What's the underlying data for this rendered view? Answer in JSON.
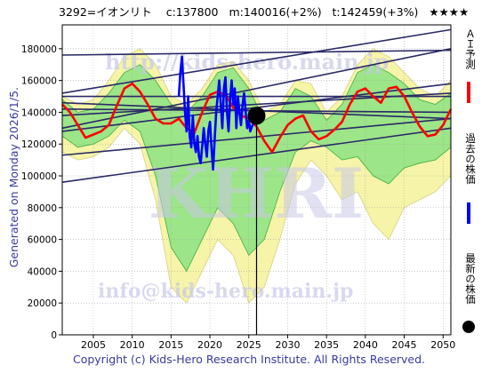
{
  "header": {
    "code_name": "3292=イオンリト",
    "current": "c:137800",
    "mid": "m:140016(+2%)",
    "target": "t:142459(+3%)",
    "stars": "★★★★"
  },
  "side_text": "Generated on Monday 2026/1/5.",
  "copyright": "Copyright (c) Kids-Hero Research Institute. All Rights Reserved.",
  "watermarks": {
    "top": "http://kids-hero.main.jp",
    "middle": "KHRI",
    "bottom": "info@kids-hero.main.jp"
  },
  "legend": {
    "ai_forecast": "ＡＩ予測",
    "past_price": "過去の株価",
    "latest_price": "最新の株価"
  },
  "colors": {
    "ai_forecast": "#ff0000",
    "past_price": "#0000ff",
    "latest_price": "#000000",
    "band_green": "#7ee07e",
    "band_yellow": "#f5f3a3",
    "trend_lines": "#2a2a66",
    "side_text": "#3a3aa0"
  },
  "chart_data": {
    "type": "line",
    "xlim": [
      2001,
      2051
    ],
    "ylim": [
      0,
      195000
    ],
    "x_ticks": [
      2005,
      2010,
      2015,
      2020,
      2025,
      2030,
      2035,
      2040,
      2045,
      2050
    ],
    "y_ticks": [
      0,
      20000,
      40000,
      60000,
      80000,
      100000,
      120000,
      140000,
      160000,
      180000
    ],
    "grid": true,
    "current_marker": {
      "x": 2026.0,
      "y": 137800
    },
    "vertical_line_x": 2026.0,
    "series": [
      {
        "name": "ＡＩ予測",
        "x": [
          2001,
          2002,
          2003,
          2004,
          2005,
          2006,
          2007,
          2008,
          2009,
          2010,
          2011,
          2012,
          2013,
          2014,
          2015,
          2016,
          2017,
          2018,
          2019,
          2020,
          2021,
          2022,
          2023,
          2024,
          2025,
          2026,
          2027,
          2028,
          2029,
          2030,
          2031,
          2032,
          2033,
          2034,
          2035,
          2036,
          2037,
          2038,
          2039,
          2040,
          2041,
          2042,
          2043,
          2044,
          2045,
          2046,
          2047,
          2048,
          2049,
          2050,
          2051
        ],
        "y": [
          145000,
          140000,
          132000,
          124000,
          126000,
          128000,
          132000,
          144000,
          155000,
          158000,
          153000,
          145000,
          136000,
          133000,
          133000,
          136000,
          130000,
          127000,
          140000,
          151000,
          153000,
          151000,
          143000,
          138000,
          136000,
          131000,
          122000,
          115000,
          124000,
          132000,
          136000,
          138000,
          128000,
          123000,
          125000,
          129000,
          134000,
          145000,
          153000,
          155000,
          150000,
          146000,
          155000,
          156000,
          150000,
          140000,
          131000,
          125000,
          126000,
          132000,
          142000
        ]
      },
      {
        "name": "過去の株価",
        "x": [
          2016.0,
          2016.2,
          2016.4,
          2016.6,
          2016.8,
          2017.0,
          2017.2,
          2017.4,
          2017.6,
          2017.8,
          2018.0,
          2018.2,
          2018.4,
          2018.6,
          2018.8,
          2019.0,
          2019.2,
          2019.4,
          2019.6,
          2019.8,
          2020.0,
          2020.2,
          2020.4,
          2020.6,
          2020.8,
          2021.0,
          2021.2,
          2021.4,
          2021.6,
          2021.8,
          2022.0,
          2022.2,
          2022.4,
          2022.6,
          2022.8,
          2023.0,
          2023.2,
          2023.4,
          2023.6,
          2023.8,
          2024.0,
          2024.2,
          2024.4,
          2024.6,
          2024.8,
          2025.0,
          2025.2,
          2025.4,
          2025.6,
          2025.8,
          2026.0
        ],
        "y": [
          150000,
          165000,
          175000,
          158000,
          140000,
          128000,
          150000,
          125000,
          118000,
          138000,
          120000,
          115000,
          125000,
          112000,
          108000,
          118000,
          130000,
          120000,
          112000,
          128000,
          134000,
          118000,
          104000,
          122000,
          140000,
          150000,
          160000,
          145000,
          130000,
          155000,
          162000,
          140000,
          128000,
          148000,
          160000,
          145000,
          155000,
          130000,
          150000,
          140000,
          132000,
          145000,
          152000,
          140000,
          130000,
          135000,
          128000,
          131000,
          133000,
          136000,
          137800
        ]
      }
    ],
    "bands": [
      {
        "name": "yellow",
        "x": [
          2001,
          2003,
          2005,
          2007,
          2009,
          2011,
          2013,
          2015,
          2017,
          2019,
          2021,
          2023,
          2025,
          2027,
          2029,
          2031,
          2033,
          2035,
          2037,
          2039,
          2041,
          2043,
          2045,
          2047,
          2049,
          2051
        ],
        "upper": [
          150000,
          145000,
          148000,
          160000,
          175000,
          180000,
          170000,
          150000,
          145000,
          155000,
          170000,
          172000,
          160000,
          140000,
          145000,
          160000,
          158000,
          140000,
          150000,
          170000,
          180000,
          175000,
          165000,
          155000,
          150000,
          160000
        ],
        "lower": [
          115000,
          110000,
          112000,
          118000,
          130000,
          120000,
          85000,
          30000,
          20000,
          40000,
          60000,
          50000,
          20000,
          30000,
          60000,
          95000,
          110000,
          100000,
          85000,
          90000,
          70000,
          60000,
          80000,
          85000,
          90000,
          100000
        ]
      },
      {
        "name": "green",
        "x": [
          2001,
          2003,
          2005,
          2007,
          2009,
          2011,
          2013,
          2015,
          2017,
          2019,
          2021,
          2023,
          2025,
          2027,
          2029,
          2031,
          2033,
          2035,
          2037,
          2039,
          2041,
          2043,
          2045,
          2047,
          2049,
          2051
        ],
        "upper": [
          148000,
          140000,
          142000,
          152000,
          165000,
          170000,
          160000,
          145000,
          140000,
          150000,
          165000,
          168000,
          155000,
          135000,
          140000,
          155000,
          150000,
          135000,
          145000,
          165000,
          170000,
          165000,
          158000,
          148000,
          145000,
          152000
        ],
        "lower": [
          125000,
          118000,
          120000,
          125000,
          135000,
          128000,
          100000,
          55000,
          40000,
          60000,
          80000,
          70000,
          50000,
          60000,
          90000,
          115000,
          122000,
          118000,
          110000,
          112000,
          100000,
          95000,
          105000,
          108000,
          110000,
          118000
        ]
      }
    ],
    "trend_lines": [
      {
        "from": [
          2001,
          176000
        ],
        "to": [
          2051,
          179000
        ]
      },
      {
        "from": [
          2001,
          152000
        ],
        "to": [
          2051,
          192000
        ]
      },
      {
        "from": [
          2001,
          150000
        ],
        "to": [
          2051,
          150000
        ]
      },
      {
        "from": [
          2001,
          146000
        ],
        "to": [
          2051,
          136000
        ]
      },
      {
        "from": [
          2001,
          142000
        ],
        "to": [
          2051,
          140000
        ]
      },
      {
        "from": [
          2001,
          138000
        ],
        "to": [
          2051,
          152000
        ]
      },
      {
        "from": [
          2001,
          130000
        ],
        "to": [
          2051,
          180000
        ]
      },
      {
        "from": [
          2001,
          128000
        ],
        "to": [
          2051,
          158000
        ]
      },
      {
        "from": [
          2001,
          113000
        ],
        "to": [
          2051,
          136000
        ]
      },
      {
        "from": [
          2001,
          96000
        ],
        "to": [
          2051,
          130000
        ]
      }
    ]
  }
}
